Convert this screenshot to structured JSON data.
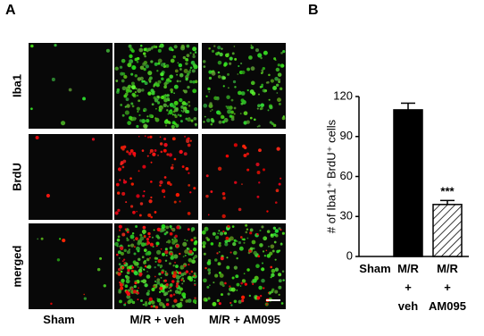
{
  "panel_a": {
    "label": "A",
    "rows": [
      "Iba1",
      "BrdU",
      "merged"
    ],
    "columns": [
      "Sham",
      "M/R  + veh",
      "M/R + AM095"
    ]
  },
  "chart_data": {
    "type": "bar",
    "panel_label": "B",
    "ylabel": "# of Iba1⁺ BrdU⁺ cells",
    "categories": [
      "Sham",
      "M/R + veh",
      "M/R + AM095"
    ],
    "values": [
      0,
      110,
      39
    ],
    "errors": [
      0,
      5,
      3
    ],
    "colors": [
      "#000000",
      "#000000",
      "#ffffff"
    ],
    "patterns": [
      "solid",
      "solid",
      "hatch"
    ],
    "ylim": [
      0,
      120
    ],
    "yticks": [
      0,
      30,
      60,
      90,
      120
    ],
    "annotations": [
      {
        "text": "***",
        "x": "M/R + AM095"
      }
    ]
  }
}
